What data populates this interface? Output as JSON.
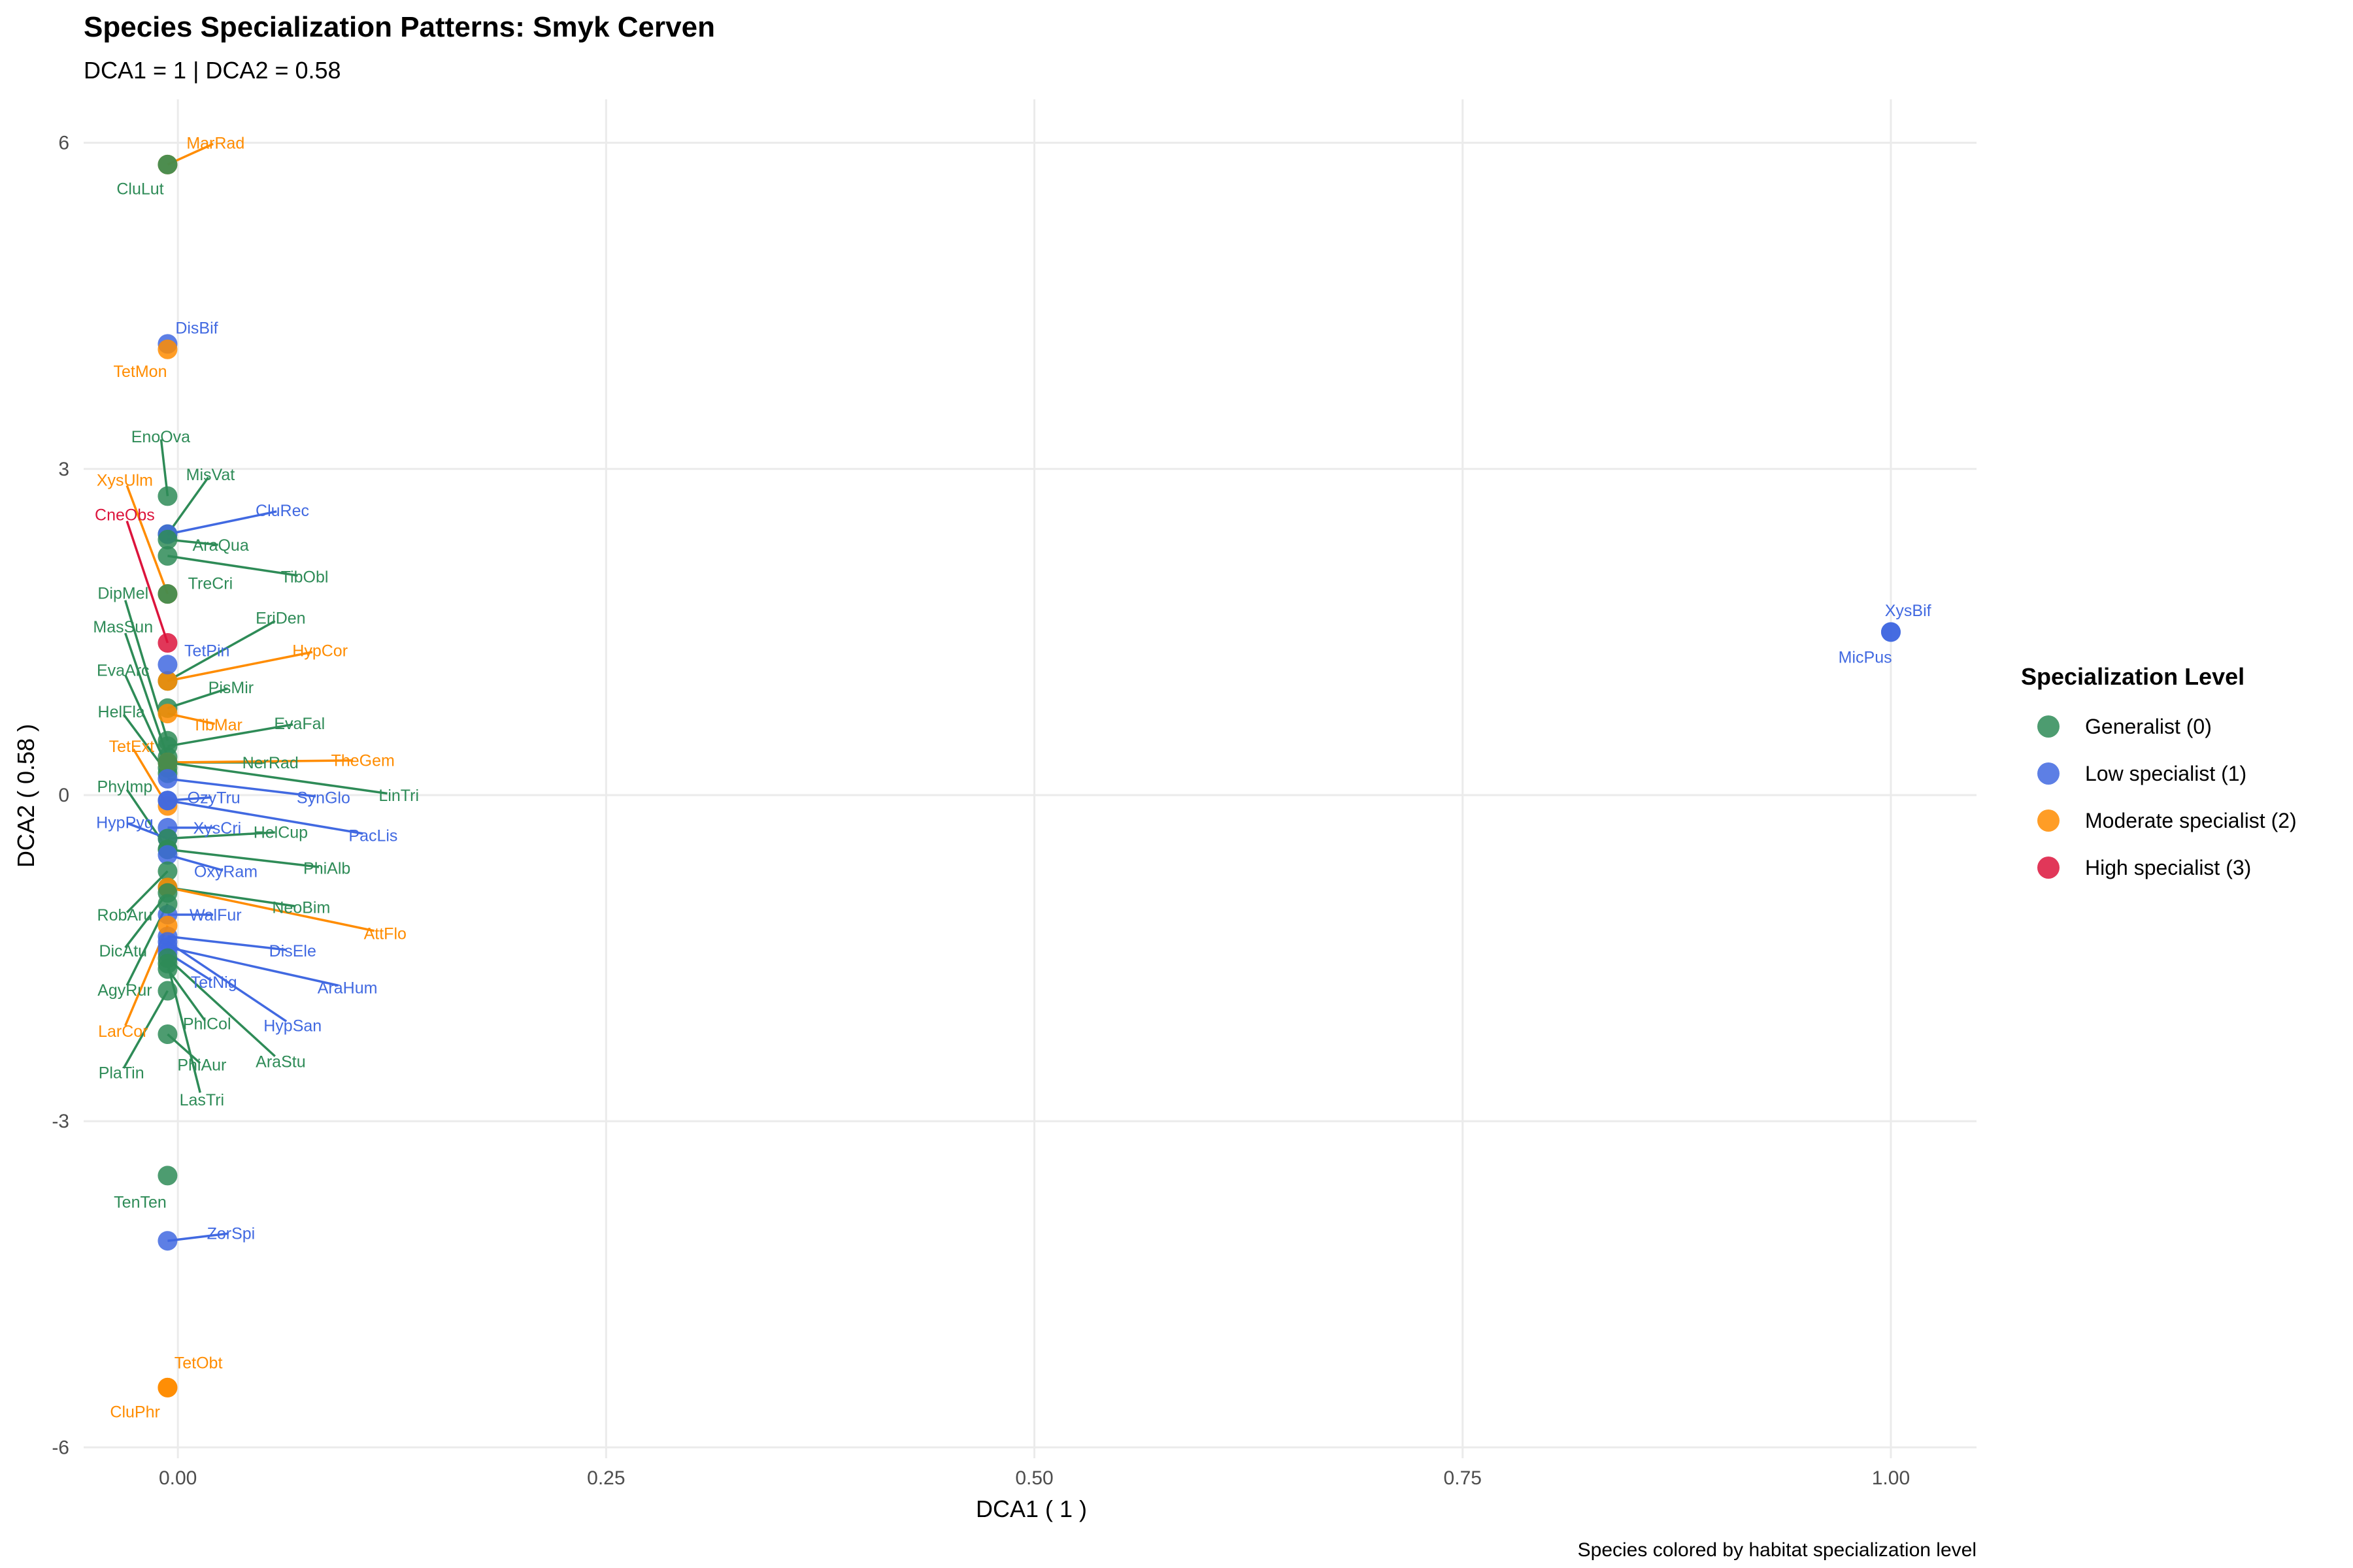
{
  "chart_data": {
    "type": "scatter",
    "title": "Species Specialization Patterns: Smyk Cerven",
    "subtitle": "DCA1 = 1 | DCA2 = 0.58",
    "xlabel": "DCA1 ( 1 )",
    "ylabel": "DCA2 ( 0.58 )",
    "caption": "Species colored by habitat specialization level",
    "xlim": [
      -0.055,
      1.05
    ],
    "ylim": [
      -6.1,
      6.4
    ],
    "x_ticks": [
      {
        "value": 0,
        "label": "0.00"
      },
      {
        "value": 0.25,
        "label": "0.25"
      },
      {
        "value": 0.5,
        "label": "0.50"
      },
      {
        "value": 0.75,
        "label": "0.75"
      },
      {
        "value": 1.0,
        "label": "1.00"
      }
    ],
    "y_ticks": [
      {
        "value": -6,
        "label": "-6"
      },
      {
        "value": -3,
        "label": "-3"
      },
      {
        "value": 0,
        "label": "0"
      },
      {
        "value": 3,
        "label": "3"
      },
      {
        "value": 6,
        "label": "6"
      }
    ],
    "grid": true,
    "legend": {
      "title": "Specialization Level",
      "placement": "right",
      "items": [
        {
          "level": 0,
          "label": "Generalist (0)",
          "color": "#2E8B57"
        },
        {
          "level": 1,
          "label": "Low specialist (1)",
          "color": "#4169E1"
        },
        {
          "level": 2,
          "label": "Moderate specialist (2)",
          "color": "#FF8C00"
        },
        {
          "level": 3,
          "label": "High specialist (3)",
          "color": "#DC143C"
        }
      ]
    },
    "points": [
      {
        "name": "MarRad",
        "x": -0.006,
        "y": 5.8,
        "level": 2
      },
      {
        "name": "CluLut",
        "x": -0.006,
        "y": 5.8,
        "level": 0
      },
      {
        "name": "DisBif",
        "x": -0.006,
        "y": 4.15,
        "level": 1
      },
      {
        "name": "TetMon",
        "x": -0.006,
        "y": 4.1,
        "level": 2
      },
      {
        "name": "EnoOva",
        "x": -0.006,
        "y": 2.75,
        "level": 0
      },
      {
        "name": "MisVat",
        "x": -0.006,
        "y": 2.4,
        "level": 0
      },
      {
        "name": "CluRec",
        "x": -0.006,
        "y": 2.4,
        "level": 1
      },
      {
        "name": "AraQua",
        "x": -0.006,
        "y": 2.35,
        "level": 0
      },
      {
        "name": "XysUlm",
        "x": -0.006,
        "y": 1.85,
        "level": 2
      },
      {
        "name": "CneObs",
        "x": -0.006,
        "y": 1.4,
        "level": 3
      },
      {
        "name": "TibObl",
        "x": -0.006,
        "y": 2.2,
        "level": 0
      },
      {
        "name": "TreCri",
        "x": -0.006,
        "y": 1.85,
        "level": 0
      },
      {
        "name": "DipMel",
        "x": -0.006,
        "y": 0.5,
        "level": 0
      },
      {
        "name": "EriDen",
        "x": -0.006,
        "y": 1.05,
        "level": 0
      },
      {
        "name": "MasSun",
        "x": -0.006,
        "y": 0.35,
        "level": 0
      },
      {
        "name": "HypCor",
        "x": -0.006,
        "y": 1.05,
        "level": 2
      },
      {
        "name": "TetPin",
        "x": -0.006,
        "y": 1.2,
        "level": 1
      },
      {
        "name": "EvaArc",
        "x": -0.006,
        "y": 0.25,
        "level": 0
      },
      {
        "name": "PisMir",
        "x": -0.006,
        "y": 0.8,
        "level": 0
      },
      {
        "name": "HelFla",
        "x": -0.006,
        "y": 0.2,
        "level": 0
      },
      {
        "name": "TibMar",
        "x": -0.006,
        "y": 0.75,
        "level": 2
      },
      {
        "name": "EvaFal",
        "x": -0.006,
        "y": 0.45,
        "level": 0
      },
      {
        "name": "TetExt",
        "x": -0.006,
        "y": -0.1,
        "level": 2
      },
      {
        "name": "NerRad",
        "x": -0.006,
        "y": 0.3,
        "level": 0
      },
      {
        "name": "TheGem",
        "x": -0.006,
        "y": 0.3,
        "level": 2
      },
      {
        "name": "LinTri",
        "x": -0.006,
        "y": 0.3,
        "level": 0
      },
      {
        "name": "PhyImp",
        "x": -0.006,
        "y": -0.5,
        "level": 0
      },
      {
        "name": "SynGlo",
        "x": -0.006,
        "y": 0.15,
        "level": 1
      },
      {
        "name": "OzyTru",
        "x": -0.006,
        "y": -0.05,
        "level": 1
      },
      {
        "name": "HypPyg",
        "x": -0.006,
        "y": -0.4,
        "level": 1
      },
      {
        "name": "PacLis",
        "x": -0.006,
        "y": -0.05,
        "level": 1
      },
      {
        "name": "XysCri",
        "x": -0.006,
        "y": -0.3,
        "level": 1
      },
      {
        "name": "HelCup",
        "x": -0.006,
        "y": -0.4,
        "level": 0
      },
      {
        "name": "PhiAlb",
        "x": -0.006,
        "y": -0.5,
        "level": 0
      },
      {
        "name": "OxyRam",
        "x": -0.006,
        "y": -0.55,
        "level": 1
      },
      {
        "name": "RobAru",
        "x": -0.006,
        "y": -0.7,
        "level": 0
      },
      {
        "name": "NeoBim",
        "x": -0.006,
        "y": -0.85,
        "level": 0
      },
      {
        "name": "WalFur",
        "x": -0.006,
        "y": -1.1,
        "level": 1
      },
      {
        "name": "AttFlo",
        "x": -0.006,
        "y": -0.85,
        "level": 2
      },
      {
        "name": "DicAtu",
        "x": -0.006,
        "y": -0.9,
        "level": 0
      },
      {
        "name": "DisEle",
        "x": -0.006,
        "y": -1.3,
        "level": 1
      },
      {
        "name": "AgyRur",
        "x": -0.006,
        "y": -1.0,
        "level": 0
      },
      {
        "name": "AraHum",
        "x": -0.006,
        "y": -1.4,
        "level": 1
      },
      {
        "name": "TetNig",
        "x": -0.006,
        "y": -1.45,
        "level": 1
      },
      {
        "name": "LarCor",
        "x": -0.006,
        "y": -1.2,
        "level": 2
      },
      {
        "name": "PhiCol",
        "x": -0.006,
        "y": -1.6,
        "level": 0
      },
      {
        "name": "HypSan",
        "x": -0.006,
        "y": -1.35,
        "level": 1
      },
      {
        "name": "PlaTin",
        "x": -0.006,
        "y": -1.8,
        "level": 0
      },
      {
        "name": "PhiAur",
        "x": -0.006,
        "y": -2.2,
        "level": 0
      },
      {
        "name": "AraStu",
        "x": -0.006,
        "y": -1.5,
        "level": 0
      },
      {
        "name": "LasTri",
        "x": -0.006,
        "y": -1.55,
        "level": 0
      },
      {
        "name": "TenTen",
        "x": -0.006,
        "y": -3.5,
        "level": 0
      },
      {
        "name": "ZorSpi",
        "x": -0.006,
        "y": -4.1,
        "level": 1
      },
      {
        "name": "TetObt",
        "x": -0.006,
        "y": -5.45,
        "level": 2
      },
      {
        "name": "CluPhr",
        "x": -0.006,
        "y": -5.45,
        "level": 2
      },
      {
        "name": "XysBif",
        "x": 1.0,
        "y": 1.5,
        "level": 1
      },
      {
        "name": "MicPus",
        "x": 1.0,
        "y": 1.5,
        "level": 1
      }
    ],
    "labels": [
      {
        "name": "MarRad",
        "lx": 0.022,
        "ly": 6.0
      },
      {
        "name": "CluLut",
        "lx": -0.022,
        "ly": 5.58
      },
      {
        "name": "DisBif",
        "lx": 0.011,
        "ly": 4.3
      },
      {
        "name": "TetMon",
        "lx": -0.022,
        "ly": 3.9
      },
      {
        "name": "EnoOva",
        "lx": -0.01,
        "ly": 3.3
      },
      {
        "name": "MisVat",
        "lx": 0.019,
        "ly": 2.95
      },
      {
        "name": "CluRec",
        "lx": 0.061,
        "ly": 2.62
      },
      {
        "name": "AraQua",
        "lx": 0.025,
        "ly": 2.3
      },
      {
        "name": "XysUlm",
        "lx": -0.031,
        "ly": 2.9
      },
      {
        "name": "CneObs",
        "lx": -0.031,
        "ly": 2.58
      },
      {
        "name": "TibObl",
        "lx": 0.074,
        "ly": 2.01
      },
      {
        "name": "TreCri",
        "lx": 0.019,
        "ly": 1.95
      },
      {
        "name": "DipMel",
        "lx": -0.032,
        "ly": 1.86
      },
      {
        "name": "EriDen",
        "lx": 0.06,
        "ly": 1.63
      },
      {
        "name": "MasSun",
        "lx": -0.032,
        "ly": 1.55
      },
      {
        "name": "HypCor",
        "lx": 0.083,
        "ly": 1.33
      },
      {
        "name": "TetPin",
        "lx": 0.017,
        "ly": 1.33
      },
      {
        "name": "EvaArc",
        "lx": -0.032,
        "ly": 1.15
      },
      {
        "name": "PisMir",
        "lx": 0.031,
        "ly": 0.99
      },
      {
        "name": "HelFla",
        "lx": -0.033,
        "ly": 0.77
      },
      {
        "name": "TibMar",
        "lx": 0.023,
        "ly": 0.65
      },
      {
        "name": "EvaFal",
        "lx": 0.071,
        "ly": 0.66
      },
      {
        "name": "TetExt",
        "lx": -0.027,
        "ly": 0.45
      },
      {
        "name": "NerRad",
        "lx": 0.054,
        "ly": 0.3
      },
      {
        "name": "TheGem",
        "lx": 0.108,
        "ly": 0.32
      },
      {
        "name": "LinTri",
        "lx": 0.129,
        "ly": 0.0
      },
      {
        "name": "PhyImp",
        "lx": -0.031,
        "ly": 0.08
      },
      {
        "name": "SynGlo",
        "lx": 0.085,
        "ly": -0.02
      },
      {
        "name": "OzyTru",
        "lx": 0.021,
        "ly": -0.02
      },
      {
        "name": "HypPyg",
        "lx": -0.031,
        "ly": -0.25
      },
      {
        "name": "PacLis",
        "lx": 0.114,
        "ly": -0.37
      },
      {
        "name": "XysCri",
        "lx": 0.023,
        "ly": -0.3
      },
      {
        "name": "HelCup",
        "lx": 0.06,
        "ly": -0.34
      },
      {
        "name": "PhiAlb",
        "lx": 0.087,
        "ly": -0.67
      },
      {
        "name": "OxyRam",
        "lx": 0.028,
        "ly": -0.7
      },
      {
        "name": "RobAru",
        "lx": -0.031,
        "ly": -1.1
      },
      {
        "name": "NeoBim",
        "lx": 0.072,
        "ly": -1.03
      },
      {
        "name": "WalFur",
        "lx": 0.022,
        "ly": -1.1
      },
      {
        "name": "AttFlo",
        "lx": 0.121,
        "ly": -1.27
      },
      {
        "name": "DicAtu",
        "lx": -0.032,
        "ly": -1.43
      },
      {
        "name": "DisEle",
        "lx": 0.067,
        "ly": -1.43
      },
      {
        "name": "AgyRur",
        "lx": -0.031,
        "ly": -1.79
      },
      {
        "name": "AraHum",
        "lx": 0.099,
        "ly": -1.77
      },
      {
        "name": "TetNig",
        "lx": 0.021,
        "ly": -1.72
      },
      {
        "name": "LarCor",
        "lx": -0.032,
        "ly": -2.17
      },
      {
        "name": "PhiCol",
        "lx": 0.017,
        "ly": -2.1
      },
      {
        "name": "HypSan",
        "lx": 0.067,
        "ly": -2.12
      },
      {
        "name": "PlaTin",
        "lx": -0.033,
        "ly": -2.55
      },
      {
        "name": "PhiAur",
        "lx": 0.014,
        "ly": -2.48
      },
      {
        "name": "AraStu",
        "lx": 0.06,
        "ly": -2.45
      },
      {
        "name": "LasTri",
        "lx": 0.014,
        "ly": -2.8
      },
      {
        "name": "TenTen",
        "lx": -0.022,
        "ly": -3.74
      },
      {
        "name": "ZorSpi",
        "lx": 0.031,
        "ly": -4.03
      },
      {
        "name": "TetObt",
        "lx": 0.012,
        "ly": -5.22
      },
      {
        "name": "CluPhr",
        "lx": -0.025,
        "ly": -5.67
      },
      {
        "name": "XysBif",
        "lx": 1.01,
        "ly": 1.7
      },
      {
        "name": "MicPus",
        "lx": 0.985,
        "ly": 1.27
      }
    ]
  }
}
